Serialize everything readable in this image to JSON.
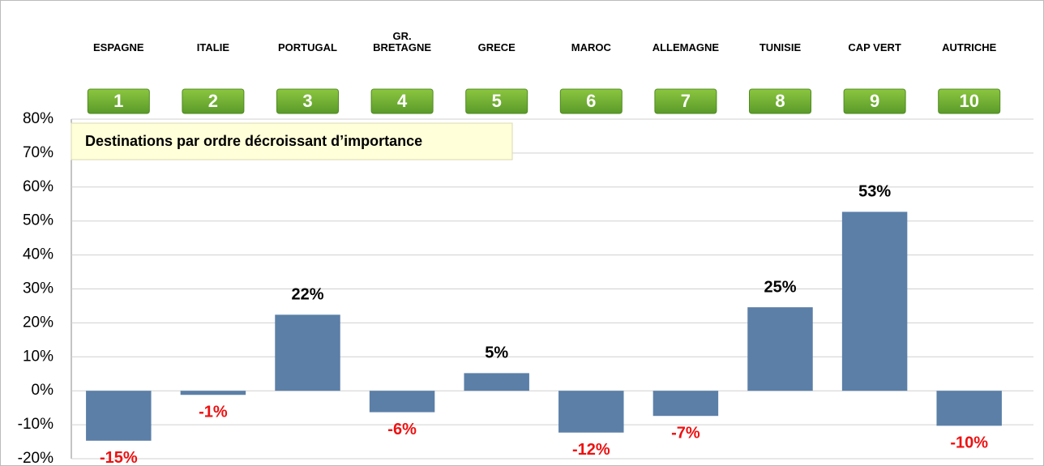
{
  "chart_data": {
    "type": "bar",
    "annotation": "Destinations par ordre décroissant d’importance",
    "categories": [
      "ESPAGNE",
      "ITALIE",
      "PORTUGAL",
      "GR.\nBRETAGNE",
      "GRECE",
      "MAROC",
      "ALLEMAGNE",
      "TUNISIE",
      "CAP VERT",
      "AUTRICHE"
    ],
    "ranks": [
      "1",
      "2",
      "3",
      "4",
      "5",
      "6",
      "7",
      "8",
      "9",
      "10"
    ],
    "values": [
      -14.7,
      -1.2,
      22.4,
      -6.3,
      5.2,
      -12.3,
      -7.4,
      24.6,
      52.7,
      -10.3
    ],
    "value_labels": [
      "-15%",
      "-1%",
      "22%",
      "-6%",
      "5%",
      "-12%",
      "-7%",
      "25%",
      "53%",
      "-10%"
    ],
    "color": "#5b7fa7",
    "ylim": [
      -20,
      80
    ],
    "yticks": [
      {
        "value": -20,
        "label": "-20%"
      },
      {
        "value": -10,
        "label": "-10%"
      },
      {
        "value": 0,
        "label": "0%"
      },
      {
        "value": 10,
        "label": "10%"
      },
      {
        "value": 20,
        "label": "20%"
      },
      {
        "value": 30,
        "label": "30%"
      },
      {
        "value": 40,
        "label": "40%"
      },
      {
        "value": 50,
        "label": "50%"
      },
      {
        "value": 60,
        "label": "60%"
      },
      {
        "value": 70,
        "label": "70%"
      },
      {
        "value": 80,
        "label": "80%"
      }
    ],
    "grid": true
  }
}
